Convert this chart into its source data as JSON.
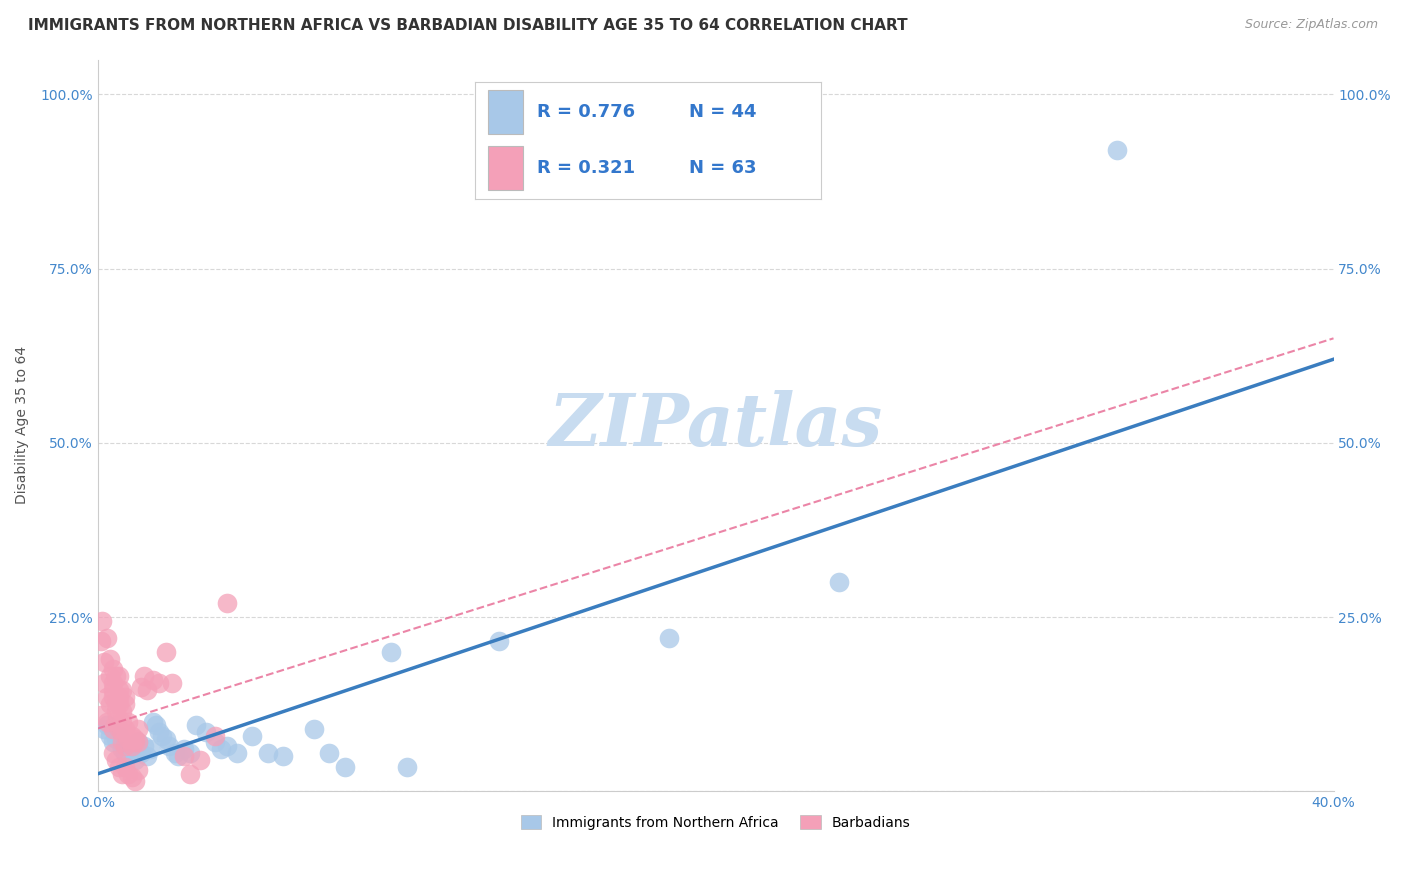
{
  "title": "IMMIGRANTS FROM NORTHERN AFRICA VS BARBADIAN DISABILITY AGE 35 TO 64 CORRELATION CHART",
  "source": "Source: ZipAtlas.com",
  "ylabel_label": "Disability Age 35 to 64",
  "xlim": [
    0.0,
    0.4
  ],
  "ylim": [
    0.0,
    1.05
  ],
  "xticks": [
    0.0,
    0.08,
    0.16,
    0.24,
    0.32,
    0.4
  ],
  "yticks": [
    0.0,
    0.25,
    0.5,
    0.75,
    1.0
  ],
  "watermark": "ZIPatlas",
  "legend1_R": "0.776",
  "legend1_N": "44",
  "legend2_R": "0.321",
  "legend2_N": "63",
  "blue_color": "#a8c8e8",
  "pink_color": "#f4a0b8",
  "blue_line_color": "#3a7dbf",
  "pink_line_color": "#e87098",
  "blue_scatter": [
    [
      0.002,
      0.09
    ],
    [
      0.003,
      0.095
    ],
    [
      0.004,
      0.08
    ],
    [
      0.005,
      0.07
    ],
    [
      0.006,
      0.075
    ],
    [
      0.007,
      0.08
    ],
    [
      0.008,
      0.06
    ],
    [
      0.009,
      0.055
    ],
    [
      0.01,
      0.05
    ],
    [
      0.011,
      0.06
    ],
    [
      0.012,
      0.045
    ],
    [
      0.013,
      0.07
    ],
    [
      0.014,
      0.055
    ],
    [
      0.015,
      0.065
    ],
    [
      0.016,
      0.05
    ],
    [
      0.017,
      0.06
    ],
    [
      0.018,
      0.1
    ],
    [
      0.019,
      0.095
    ],
    [
      0.02,
      0.085
    ],
    [
      0.021,
      0.08
    ],
    [
      0.022,
      0.075
    ],
    [
      0.023,
      0.065
    ],
    [
      0.025,
      0.055
    ],
    [
      0.026,
      0.05
    ],
    [
      0.028,
      0.06
    ],
    [
      0.03,
      0.055
    ],
    [
      0.032,
      0.095
    ],
    [
      0.035,
      0.085
    ],
    [
      0.038,
      0.07
    ],
    [
      0.04,
      0.06
    ],
    [
      0.042,
      0.065
    ],
    [
      0.045,
      0.055
    ],
    [
      0.05,
      0.08
    ],
    [
      0.055,
      0.055
    ],
    [
      0.06,
      0.05
    ],
    [
      0.07,
      0.09
    ],
    [
      0.075,
      0.055
    ],
    [
      0.08,
      0.035
    ],
    [
      0.095,
      0.2
    ],
    [
      0.1,
      0.035
    ],
    [
      0.13,
      0.215
    ],
    [
      0.185,
      0.22
    ],
    [
      0.24,
      0.3
    ],
    [
      0.33,
      0.92
    ]
  ],
  "pink_scatter": [
    [
      0.001,
      0.11
    ],
    [
      0.001,
      0.215
    ],
    [
      0.0015,
      0.245
    ],
    [
      0.002,
      0.155
    ],
    [
      0.002,
      0.185
    ],
    [
      0.003,
      0.22
    ],
    [
      0.003,
      0.135
    ],
    [
      0.003,
      0.1
    ],
    [
      0.004,
      0.165
    ],
    [
      0.004,
      0.19
    ],
    [
      0.004,
      0.125
    ],
    [
      0.005,
      0.175
    ],
    [
      0.005,
      0.145
    ],
    [
      0.005,
      0.09
    ],
    [
      0.005,
      0.155
    ],
    [
      0.005,
      0.135
    ],
    [
      0.006,
      0.115
    ],
    [
      0.006,
      0.165
    ],
    [
      0.006,
      0.125
    ],
    [
      0.006,
      0.1
    ],
    [
      0.007,
      0.145
    ],
    [
      0.007,
      0.165
    ],
    [
      0.007,
      0.09
    ],
    [
      0.007,
      0.135
    ],
    [
      0.007,
      0.125
    ],
    [
      0.008,
      0.085
    ],
    [
      0.008,
      0.115
    ],
    [
      0.008,
      0.145
    ],
    [
      0.008,
      0.07
    ],
    [
      0.008,
      0.1
    ],
    [
      0.009,
      0.125
    ],
    [
      0.009,
      0.065
    ],
    [
      0.009,
      0.09
    ],
    [
      0.009,
      0.135
    ],
    [
      0.01,
      0.075
    ],
    [
      0.01,
      0.1
    ],
    [
      0.011,
      0.065
    ],
    [
      0.011,
      0.08
    ],
    [
      0.012,
      0.07
    ],
    [
      0.012,
      0.075
    ],
    [
      0.013,
      0.09
    ],
    [
      0.013,
      0.07
    ],
    [
      0.014,
      0.15
    ],
    [
      0.015,
      0.165
    ],
    [
      0.016,
      0.145
    ],
    [
      0.018,
      0.16
    ],
    [
      0.02,
      0.155
    ],
    [
      0.022,
      0.2
    ],
    [
      0.024,
      0.155
    ],
    [
      0.028,
      0.05
    ],
    [
      0.03,
      0.025
    ],
    [
      0.033,
      0.045
    ],
    [
      0.038,
      0.08
    ],
    [
      0.042,
      0.27
    ],
    [
      0.005,
      0.055
    ],
    [
      0.006,
      0.045
    ],
    [
      0.007,
      0.035
    ],
    [
      0.008,
      0.025
    ],
    [
      0.009,
      0.035
    ],
    [
      0.01,
      0.025
    ],
    [
      0.011,
      0.02
    ],
    [
      0.012,
      0.015
    ],
    [
      0.013,
      0.03
    ]
  ],
  "blue_line_x0": 0.0,
  "blue_line_y0": 0.025,
  "blue_line_x1": 0.4,
  "blue_line_y1": 0.62,
  "pink_line_x0": 0.0,
  "pink_line_y0": 0.09,
  "pink_line_x1": 0.4,
  "pink_line_y1": 0.65,
  "title_fontsize": 11,
  "axis_label_fontsize": 10,
  "tick_fontsize": 10,
  "watermark_fontsize": 52,
  "watermark_color": "#c8dcf0",
  "background_color": "#ffffff",
  "grid_color": "#d8d8d8"
}
